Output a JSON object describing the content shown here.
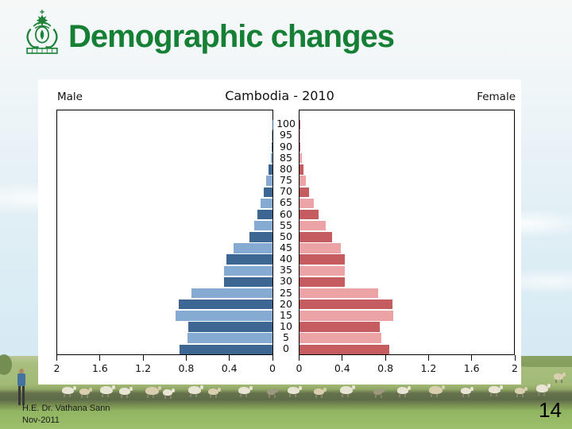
{
  "header": {
    "title": "Demographic changes"
  },
  "chart_data": {
    "type": "bar",
    "subtype": "population_pyramid",
    "title": "Cambodia - 2010",
    "left_label": "Male",
    "right_label": "Female",
    "age_groups": [
      0,
      5,
      10,
      15,
      20,
      25,
      30,
      35,
      40,
      45,
      50,
      55,
      60,
      65,
      70,
      75,
      80,
      85,
      90,
      95,
      100
    ],
    "series": [
      {
        "name": "Male",
        "values": [
          0.86,
          0.79,
          0.78,
          0.9,
          0.87,
          0.75,
          0.45,
          0.45,
          0.43,
          0.36,
          0.21,
          0.17,
          0.14,
          0.11,
          0.08,
          0.06,
          0.04,
          0.015,
          0.008,
          0.004,
          0.002
        ]
      },
      {
        "name": "Female",
        "values": [
          0.83,
          0.76,
          0.74,
          0.87,
          0.86,
          0.73,
          0.42,
          0.42,
          0.42,
          0.38,
          0.3,
          0.24,
          0.18,
          0.13,
          0.09,
          0.06,
          0.04,
          0.02,
          0.01,
          0.005,
          0.002
        ]
      }
    ],
    "x_axis": {
      "range_per_side": [
        0,
        2
      ],
      "tick_step": 0.4,
      "male_tick_labels": [
        "2",
        "1.6",
        "1.2",
        "0.8",
        "0.4",
        "0"
      ],
      "female_tick_labels": [
        "0",
        "0.4",
        "0.8",
        "1.2",
        "1.6",
        "2"
      ]
    },
    "colors": {
      "male_dark": "#3e6693",
      "male_light": "#85abd3",
      "female_dark": "#c55d60",
      "female_light": "#eca3a6"
    },
    "grid": false,
    "legend_position": "none"
  },
  "footer": {
    "author": "H.E. Dr. Vathana Sann",
    "date": "Nov-2011",
    "page_number": "14"
  }
}
